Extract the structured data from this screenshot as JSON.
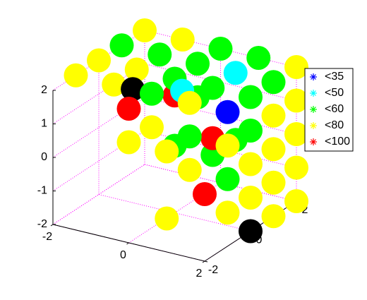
{
  "chart_data": {
    "type": "scatter3d",
    "xlim": [
      -2,
      2
    ],
    "ylim": [
      -2,
      2
    ],
    "zlim": [
      -2,
      2
    ],
    "xticks": [
      -2,
      0,
      2
    ],
    "yticks": [
      -2,
      0,
      2
    ],
    "zticks": [
      -2,
      -1,
      0,
      1,
      2
    ],
    "grid": true,
    "grid_color": "#ff00ff",
    "legend": "east",
    "series": [
      {
        "name": "<35",
        "color": "#0000ff",
        "x": [
          2
        ],
        "y": [
          -1
        ],
        "z": [
          2
        ]
      },
      {
        "name": "<50",
        "color": "#00ffff",
        "x": [
          1,
          0.5
        ],
        "y": [
          1,
          -0.5
        ],
        "z": [
          2,
          2
        ]
      },
      {
        "name": "<60",
        "color": "#00ff00",
        "x": [
          0,
          1,
          -2,
          -1,
          0,
          2,
          0,
          1,
          2,
          0,
          2,
          2,
          1,
          0,
          0,
          1,
          1
        ],
        "y": [
          2,
          2,
          1,
          1,
          1,
          1,
          0,
          0,
          0,
          -1,
          0,
          -1,
          0,
          0,
          1,
          1,
          -1
        ],
        "z": [
          2,
          2,
          2,
          2,
          2,
          2,
          2,
          2,
          2,
          2,
          1,
          0,
          0,
          0,
          1,
          0,
          1
        ]
      },
      {
        "name": "<80",
        "color": "#ffff00",
        "x": [
          -2,
          -1,
          2,
          -2,
          -1,
          -2,
          -1,
          1,
          0,
          1,
          2,
          2,
          2,
          2,
          2,
          2,
          1,
          2,
          2,
          2,
          2,
          2,
          2,
          1,
          0
        ],
        "y": [
          2,
          2,
          2,
          0,
          0,
          -1,
          -1,
          -1,
          -2,
          -2,
          -1,
          1,
          2,
          0,
          1,
          2,
          -1,
          -1,
          0,
          1,
          2,
          1,
          2,
          -2,
          -1
        ],
        "z": [
          2,
          2,
          2,
          2,
          2,
          2,
          2,
          2,
          1,
          1,
          1,
          1,
          1,
          0,
          0,
          0,
          0,
          -1,
          -1,
          -1,
          -1,
          -2,
          -2,
          -1,
          1
        ]
      },
      {
        "name": "<100",
        "color": "#ff0000",
        "x": [
          0,
          0,
          1,
          2
        ],
        "y": [
          -2,
          0,
          0,
          -2
        ],
        "z": [
          2,
          1.5,
          0.5,
          0
        ]
      },
      {
        "color": "#000000",
        "x": [
          -0.5,
          2
        ],
        "y": [
          -1,
          0
        ],
        "z": [
          2,
          -2
        ]
      }
    ]
  }
}
